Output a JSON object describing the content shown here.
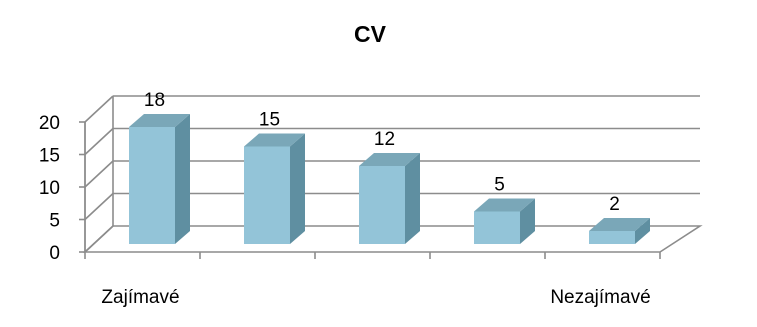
{
  "chart_data": {
    "type": "bar",
    "title": "CV",
    "categories": [
      "Zajímavé",
      "",
      "",
      "",
      "Nezajímavé"
    ],
    "values": [
      18,
      15,
      12,
      5,
      2
    ],
    "data_labels": [
      "18",
      "15",
      "12",
      "5",
      "2"
    ],
    "xlabel": "",
    "ylabel": "",
    "ylim": [
      0,
      20
    ],
    "yticks": [
      "0",
      "5",
      "10",
      "15",
      "20"
    ],
    "grid": true,
    "legend": "none",
    "style": "3d-column",
    "colors": {
      "bar_front": "#93c4d8",
      "bar_side": "#5f8fa1",
      "bar_top": "#7aa7b8",
      "grid": "#8c8c8c",
      "axis": "#8c8c8c"
    }
  }
}
